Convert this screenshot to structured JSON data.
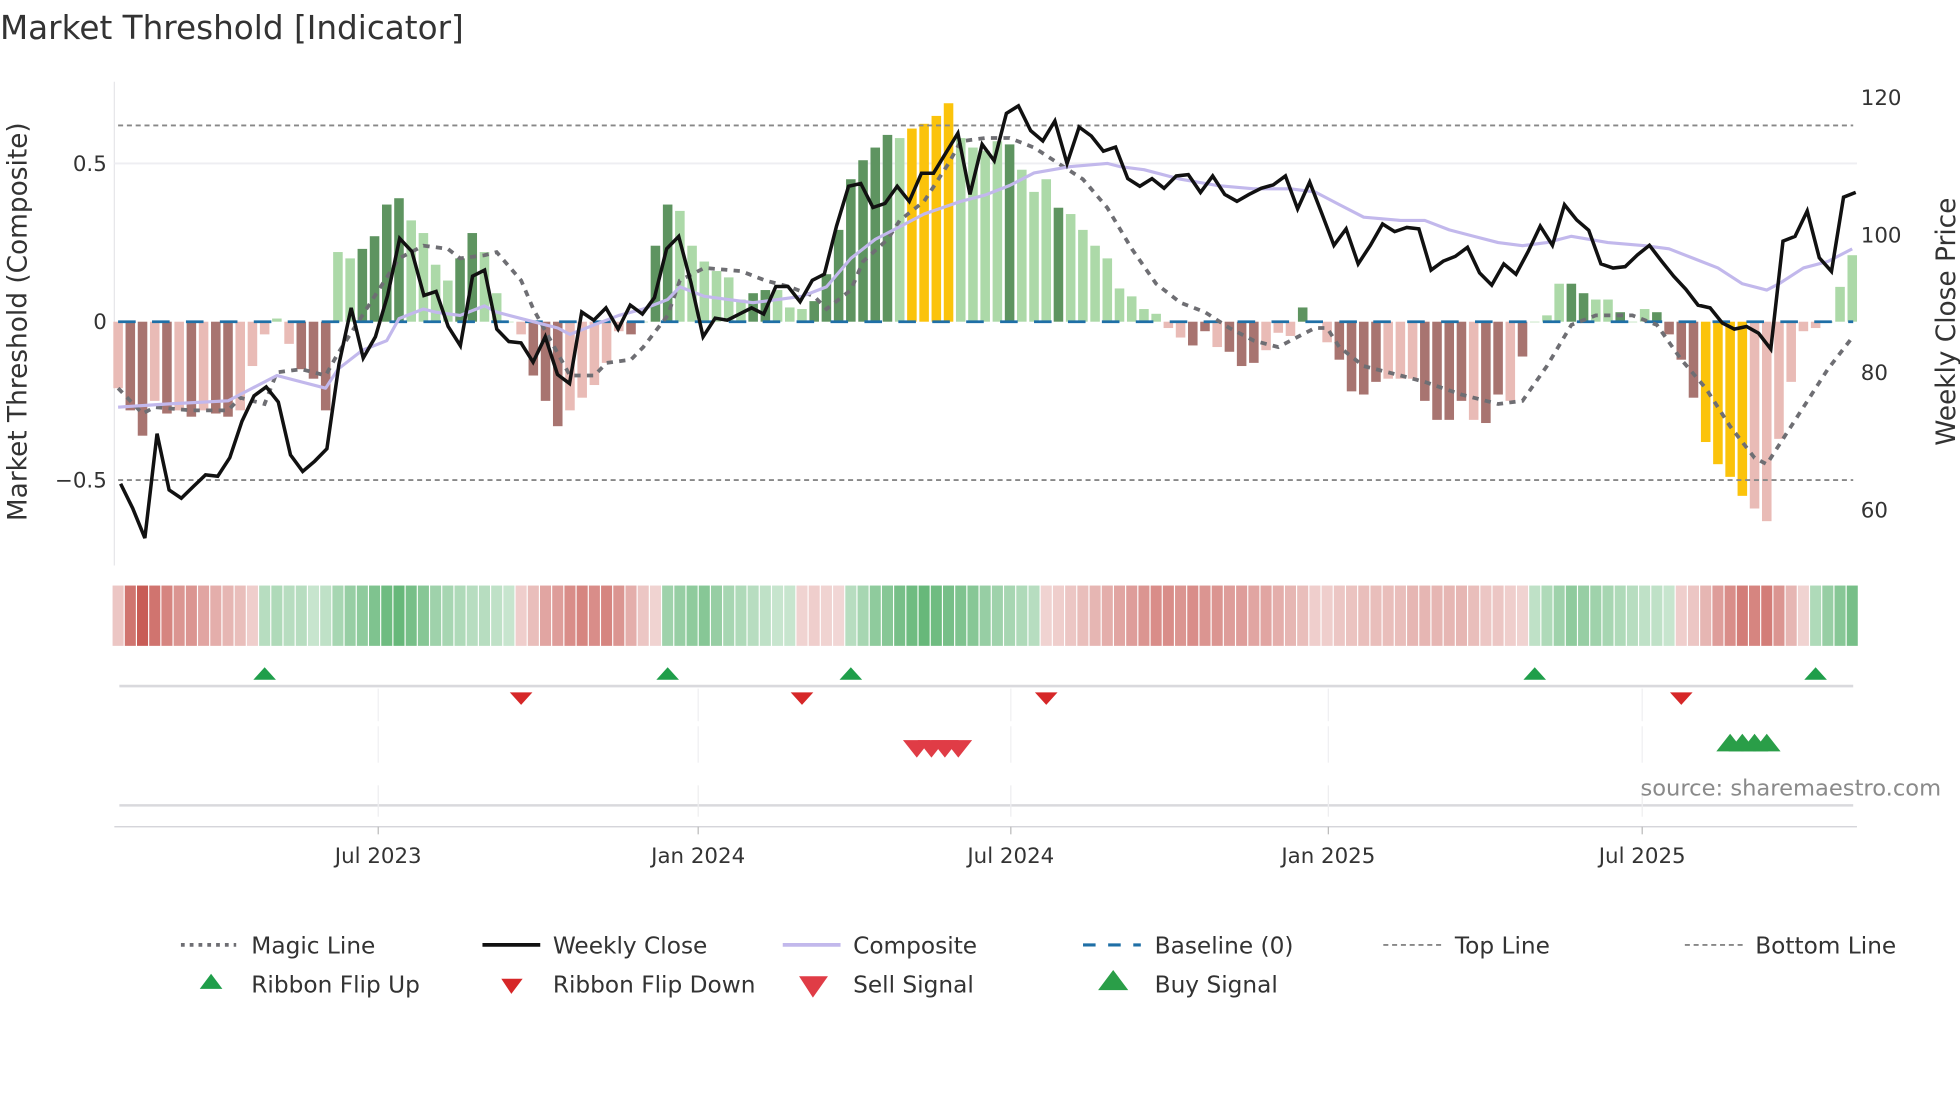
{
  "chart_data": {
    "type": "bar",
    "title": "Market Threshold [Indicator]",
    "ylabel_left": "Market Threshold (Composite)",
    "ylabel_right": "Weekly Close Price",
    "ylim_left": [
      -0.78,
      0.75
    ],
    "ylim_right": [
      50,
      124
    ],
    "yticks_left": [
      {
        "value": 0.5,
        "label": "0.5"
      },
      {
        "value": 0,
        "label": "0"
      },
      {
        "value": -0.5,
        "label": "−0.5"
      }
    ],
    "yticks_right": [
      {
        "value": 120,
        "label": "120"
      },
      {
        "value": 100,
        "label": "100"
      },
      {
        "value": 80,
        "label": "80"
      },
      {
        "value": 60,
        "label": "60"
      }
    ],
    "xticks": [
      {
        "week": 21.3,
        "label": "Jul 2023"
      },
      {
        "week": 47.5,
        "label": "Jan 2024"
      },
      {
        "week": 73.1,
        "label": "Jul 2024"
      },
      {
        "week": 99.1,
        "label": "Jan 2025"
      },
      {
        "week": 124.8,
        "label": "Jul 2025"
      }
    ],
    "weeks": 143,
    "top_line": 0.62,
    "bottom_line": -0.5,
    "baseline": 0,
    "composite_bars": [
      -0.21,
      -0.28,
      -0.36,
      -0.25,
      -0.29,
      -0.28,
      -0.3,
      -0.28,
      -0.29,
      -0.3,
      -0.28,
      -0.14,
      -0.04,
      0.01,
      -0.07,
      -0.15,
      -0.18,
      -0.28,
      0.22,
      0.2,
      0.23,
      0.27,
      0.37,
      0.39,
      0.32,
      0.28,
      0.18,
      0.13,
      0.2,
      0.28,
      0.22,
      0.09,
      0.0,
      -0.04,
      -0.17,
      -0.25,
      -0.33,
      -0.28,
      -0.24,
      -0.2,
      -0.13,
      -0.03,
      -0.04,
      0.0,
      0.24,
      0.37,
      0.35,
      0.24,
      0.19,
      0.16,
      0.14,
      0.07,
      0.09,
      0.1,
      0.1,
      0.045,
      0.04,
      0.065,
      0.15,
      0.29,
      0.45,
      0.51,
      0.55,
      0.59,
      0.58,
      0.61,
      0.625,
      0.65,
      0.69,
      0.58,
      0.55,
      0.54,
      0.57,
      0.56,
      0.48,
      0.41,
      0.45,
      0.36,
      0.34,
      0.29,
      0.24,
      0.2,
      0.105,
      0.08,
      0.04,
      0.025,
      -0.02,
      -0.05,
      -0.075,
      -0.03,
      -0.08,
      -0.095,
      -0.14,
      -0.13,
      -0.09,
      -0.035,
      -0.045,
      0.045,
      0.0,
      -0.065,
      -0.12,
      -0.22,
      -0.23,
      -0.19,
      -0.18,
      -0.18,
      -0.18,
      -0.25,
      -0.31,
      -0.31,
      -0.25,
      -0.31,
      -0.32,
      -0.23,
      -0.25,
      -0.11,
      0.0,
      0.02,
      0.12,
      0.12,
      0.09,
      0.07,
      0.07,
      0.03,
      0.0,
      0.04,
      0.03,
      -0.04,
      -0.12,
      -0.24,
      -0.38,
      -0.45,
      -0.49,
      -0.55,
      -0.59,
      -0.63,
      -0.37,
      -0.19,
      -0.03,
      -0.02,
      0.0,
      0.11,
      0.21
    ],
    "bar_shades": "lddldldlddlllllddd",
    "bar_shades_2": "llddddllllddllllddd",
    "bar_shades_3": "llllldlddlllllldd lllddddddd lyyyylll dlll",
    "bar_shade_codes": "lddldldlddlllllddd llddddllllddllllddd llllldlddllllllddllldddddddlyyyylllldlll dllllllllllddlddd llldlldddd llldddd ldd ld lllddlldllddddyyyyllllll d",
    "shade_colors": {
      "dark_green": "#5e9460",
      "light_green": "#acd9a8",
      "dark_red": "#a87470",
      "light_red": "#e9bbb6",
      "yellow": "#fbc30b"
    },
    "weekly_close": [
      63.8,
      60.2,
      55.9,
      71.1,
      62.9,
      61.7,
      63.4,
      65.1,
      64.9,
      67.6,
      72.9,
      76.6,
      77.9,
      75.7,
      68.0,
      65.6,
      67.1,
      68.9,
      81.2,
      89.4,
      82.1,
      85.2,
      91.2,
      99.5,
      97.6,
      91.2,
      91.8,
      86.7,
      83.9,
      94.0,
      94.9,
      86.3,
      84.5,
      84.3,
      81.5,
      85.2,
      79.7,
      78.4,
      88.8,
      87.6,
      89.4,
      86.3,
      89.8,
      88.5,
      90.9,
      98.0,
      99.8,
      93.1,
      85.2,
      87.9,
      87.6,
      88.5,
      89.4,
      88.5,
      92.5,
      92.5,
      90.3,
      93.4,
      94.3,
      101.3,
      107.1,
      107.5,
      104.0,
      104.6,
      107.1,
      104.9,
      109.0,
      109.0,
      111.9,
      114.8,
      105.9,
      113.2,
      110.8,
      117.7,
      118.8,
      115.2,
      113.7,
      116.6,
      110.4,
      115.7,
      114.4,
      112.2,
      112.8,
      108.2,
      107.1,
      108.2,
      106.8,
      108.6,
      108.8,
      106.2,
      108.6,
      105.9,
      104.9,
      105.9,
      106.8,
      107.3,
      108.6,
      103.8,
      107.7,
      103.1,
      98.5,
      100.9,
      95.8,
      98.5,
      101.6,
      100.5,
      101.1,
      100.9,
      94.9,
      96.2,
      96.9,
      98.2,
      94.5,
      92.7,
      95.8,
      94.3,
      97.6,
      101.3,
      98.5,
      104.4,
      102.2,
      100.7,
      95.8,
      95.2,
      95.4,
      97.1,
      98.5,
      96.2,
      94.0,
      92.1,
      89.8,
      89.4,
      87.2,
      86.3,
      86.7,
      85.7,
      83.4,
      99.1,
      99.8,
      103.5,
      96.7,
      94.7,
      105.5,
      106.2
    ],
    "composite_line": [
      [
        0,
        -0.27
      ],
      [
        4,
        -0.26
      ],
      [
        9,
        -0.25
      ],
      [
        11,
        -0.21
      ],
      [
        13,
        -0.17
      ],
      [
        15,
        -0.19
      ],
      [
        17,
        -0.21
      ],
      [
        18,
        -0.15
      ],
      [
        20,
        -0.09
      ],
      [
        22,
        -0.06
      ],
      [
        23,
        0.01
      ],
      [
        25,
        0.04
      ],
      [
        26,
        0.03
      ],
      [
        28,
        0.02
      ],
      [
        30,
        0.05
      ],
      [
        31,
        0.03
      ],
      [
        34,
        0.0
      ],
      [
        36,
        -0.02
      ],
      [
        37,
        -0.04
      ],
      [
        39,
        -0.01
      ],
      [
        41,
        0.02
      ],
      [
        43,
        0.04
      ],
      [
        45,
        0.07
      ],
      [
        46,
        0.11
      ],
      [
        48,
        0.08
      ],
      [
        50,
        0.07
      ],
      [
        52,
        0.06
      ],
      [
        54,
        0.07
      ],
      [
        56,
        0.08
      ],
      [
        58,
        0.11
      ],
      [
        60,
        0.2
      ],
      [
        62,
        0.26
      ],
      [
        64,
        0.3
      ],
      [
        66,
        0.34
      ],
      [
        69,
        0.38
      ],
      [
        71,
        0.4
      ],
      [
        73,
        0.43
      ],
      [
        75,
        0.47
      ],
      [
        78,
        0.49
      ],
      [
        81,
        0.5
      ],
      [
        82,
        0.49
      ],
      [
        84,
        0.48
      ],
      [
        87,
        0.45
      ],
      [
        90,
        0.43
      ],
      [
        93,
        0.42
      ],
      [
        96,
        0.42
      ],
      [
        98,
        0.41
      ],
      [
        100,
        0.37
      ],
      [
        102,
        0.33
      ],
      [
        105,
        0.32
      ],
      [
        107,
        0.32
      ],
      [
        109,
        0.29
      ],
      [
        111,
        0.27
      ],
      [
        113,
        0.25
      ],
      [
        115,
        0.24
      ],
      [
        117,
        0.25
      ],
      [
        119,
        0.27
      ],
      [
        122,
        0.25
      ],
      [
        125,
        0.24
      ],
      [
        127,
        0.23
      ],
      [
        129,
        0.2
      ],
      [
        131,
        0.17
      ],
      [
        133,
        0.12
      ],
      [
        135,
        0.1
      ],
      [
        136,
        0.12
      ],
      [
        138,
        0.17
      ],
      [
        140,
        0.19
      ],
      [
        142,
        0.23
      ]
    ],
    "magic_line": [
      [
        0,
        -0.21
      ],
      [
        2,
        -0.29
      ],
      [
        3,
        -0.27
      ],
      [
        6,
        -0.28
      ],
      [
        9,
        -0.28
      ],
      [
        10,
        -0.24
      ],
      [
        12,
        -0.26
      ],
      [
        13,
        -0.16
      ],
      [
        15,
        -0.15
      ],
      [
        17,
        -0.17
      ],
      [
        18,
        -0.1
      ],
      [
        20,
        0.02
      ],
      [
        21,
        0.08
      ],
      [
        23,
        0.2
      ],
      [
        25,
        0.24
      ],
      [
        27,
        0.23
      ],
      [
        28,
        0.2
      ],
      [
        30,
        0.21
      ],
      [
        31,
        0.22
      ],
      [
        33,
        0.13
      ],
      [
        34,
        0.04
      ],
      [
        36,
        -0.1
      ],
      [
        37,
        -0.17
      ],
      [
        39,
        -0.17
      ],
      [
        40,
        -0.13
      ],
      [
        42,
        -0.12
      ],
      [
        43,
        -0.08
      ],
      [
        45,
        0.02
      ],
      [
        46,
        0.13
      ],
      [
        48,
        0.17
      ],
      [
        51,
        0.16
      ],
      [
        53,
        0.13
      ],
      [
        55,
        0.11
      ],
      [
        57,
        0.08
      ],
      [
        58,
        0.04
      ],
      [
        60,
        0.1
      ],
      [
        61,
        0.19
      ],
      [
        63,
        0.26
      ],
      [
        64,
        0.32
      ],
      [
        66,
        0.38
      ],
      [
        68,
        0.5
      ],
      [
        69,
        0.57
      ],
      [
        71,
        0.58
      ],
      [
        73,
        0.58
      ],
      [
        75,
        0.55
      ],
      [
        77,
        0.5
      ],
      [
        79,
        0.45
      ],
      [
        81,
        0.36
      ],
      [
        83,
        0.23
      ],
      [
        85,
        0.12
      ],
      [
        87,
        0.06
      ],
      [
        89,
        0.03
      ],
      [
        91,
        -0.02
      ],
      [
        93,
        -0.06
      ],
      [
        95,
        -0.08
      ],
      [
        96,
        -0.06
      ],
      [
        98,
        -0.02
      ],
      [
        99,
        -0.02
      ],
      [
        100,
        -0.08
      ],
      [
        102,
        -0.14
      ],
      [
        105,
        -0.17
      ],
      [
        107,
        -0.19
      ],
      [
        110,
        -0.23
      ],
      [
        113,
        -0.26
      ],
      [
        115,
        -0.25
      ],
      [
        117,
        -0.14
      ],
      [
        119,
        -0.01
      ],
      [
        121,
        0.02
      ],
      [
        124,
        0.02
      ],
      [
        126,
        -0.01
      ],
      [
        128,
        -0.12
      ],
      [
        130,
        -0.21
      ],
      [
        132,
        -0.33
      ],
      [
        134,
        -0.43
      ],
      [
        135,
        -0.45
      ],
      [
        136,
        -0.39
      ],
      [
        138,
        -0.27
      ],
      [
        140,
        -0.15
      ],
      [
        142,
        -0.05
      ]
    ],
    "ribbon": [
      -0.2,
      -0.7,
      -0.9,
      -0.7,
      -0.6,
      -0.5,
      -0.5,
      -0.4,
      -0.35,
      -0.3,
      -0.25,
      -0.15,
      0.3,
      0.35,
      0.3,
      0.3,
      0.2,
      0.25,
      0.4,
      0.5,
      0.55,
      0.65,
      0.75,
      0.8,
      0.7,
      0.6,
      0.45,
      0.4,
      0.35,
      0.3,
      0.3,
      0.25,
      0.2,
      -0.15,
      -0.25,
      -0.4,
      -0.45,
      -0.55,
      -0.6,
      -0.55,
      -0.6,
      -0.5,
      -0.35,
      -0.2,
      -0.12,
      0.45,
      0.5,
      0.55,
      0.6,
      0.5,
      0.4,
      0.35,
      0.3,
      0.25,
      0.2,
      0.2,
      -0.12,
      -0.15,
      -0.12,
      -0.1,
      0.3,
      0.4,
      0.55,
      0.6,
      0.7,
      0.75,
      0.8,
      0.75,
      0.7,
      0.65,
      0.6,
      0.5,
      0.45,
      0.4,
      0.35,
      0.3,
      -0.12,
      -0.15,
      -0.2,
      -0.25,
      -0.3,
      -0.35,
      -0.4,
      -0.45,
      -0.5,
      -0.55,
      -0.55,
      -0.5,
      -0.55,
      -0.5,
      -0.5,
      -0.45,
      -0.45,
      -0.4,
      -0.4,
      -0.35,
      -0.3,
      -0.25,
      -0.15,
      -0.15,
      -0.2,
      -0.22,
      -0.25,
      -0.25,
      -0.25,
      -0.25,
      -0.3,
      -0.3,
      -0.3,
      -0.3,
      -0.3,
      -0.25,
      -0.2,
      -0.2,
      -0.15,
      -0.12,
      0.25,
      0.35,
      0.45,
      0.55,
      0.5,
      0.45,
      0.4,
      0.35,
      0.3,
      0.25,
      0.25,
      0.2,
      -0.15,
      -0.2,
      -0.3,
      -0.45,
      -0.55,
      -0.65,
      -0.6,
      -0.65,
      -0.5,
      -0.3,
      -0.12,
      0.35,
      0.5,
      0.6,
      0.7
    ],
    "ribbon_flip_up": [
      12,
      45,
      60,
      116,
      139
    ],
    "ribbon_flip_down": [
      33,
      56,
      76,
      128
    ],
    "sell_signal": [
      65.4,
      66.6,
      67.7,
      68.8
    ],
    "buy_signal": [
      132,
      133,
      134,
      135
    ],
    "legend": {
      "magic_line": "Magic Line",
      "weekly_close": "Weekly Close",
      "composite": "Composite",
      "baseline": "Baseline (0)",
      "top_line": "Top Line",
      "bottom_line": "Bottom Line",
      "ribbon_flip_up": "Ribbon Flip Up",
      "ribbon_flip_down": "Ribbon Flip Down",
      "sell_signal": "Sell Signal",
      "buy_signal": "Buy Signal"
    },
    "source": "source: sharemaestro.com",
    "colors": {
      "weekly_close": "#111111",
      "composite": "#c2b8ec",
      "magic": "#6e6e73",
      "baseline": "#1f6fa6",
      "flip_up": "#1f9e4a",
      "flip_down": "#d62728",
      "sell": "#e03c46",
      "buy": "#2a9e48"
    }
  }
}
